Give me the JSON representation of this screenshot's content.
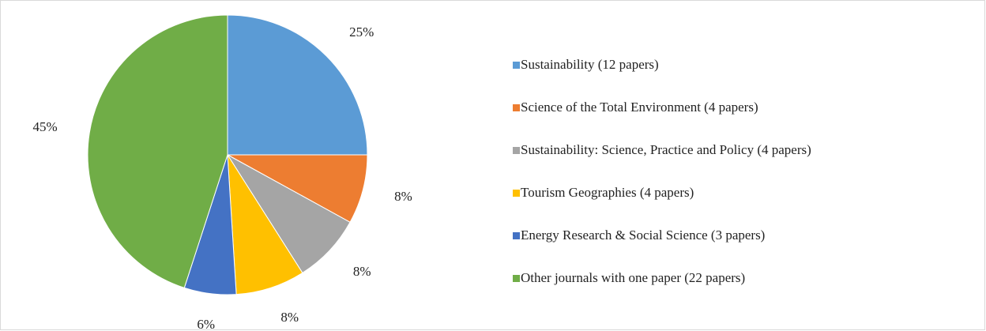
{
  "chart_data": {
    "type": "pie",
    "categories": [
      "Sustainability (12 papers)",
      "Science of the Total Environment (4 papers)",
      "Sustainability: Science, Practice and Policy (4 papers)",
      "Tourism Geographies (4 papers)",
      "Energy Research & Social Science (3 papers)",
      "Other journals with one paper (22 papers)"
    ],
    "values": [
      25,
      8,
      8,
      8,
      6,
      45
    ],
    "value_labels": [
      "25%",
      "8%",
      "8%",
      "8%",
      "6%",
      "45%"
    ],
    "colors": [
      "#5b9bd5",
      "#ed7d31",
      "#a5a5a5",
      "#ffc000",
      "#4472c4",
      "#70ad47"
    ],
    "legend": "right"
  }
}
